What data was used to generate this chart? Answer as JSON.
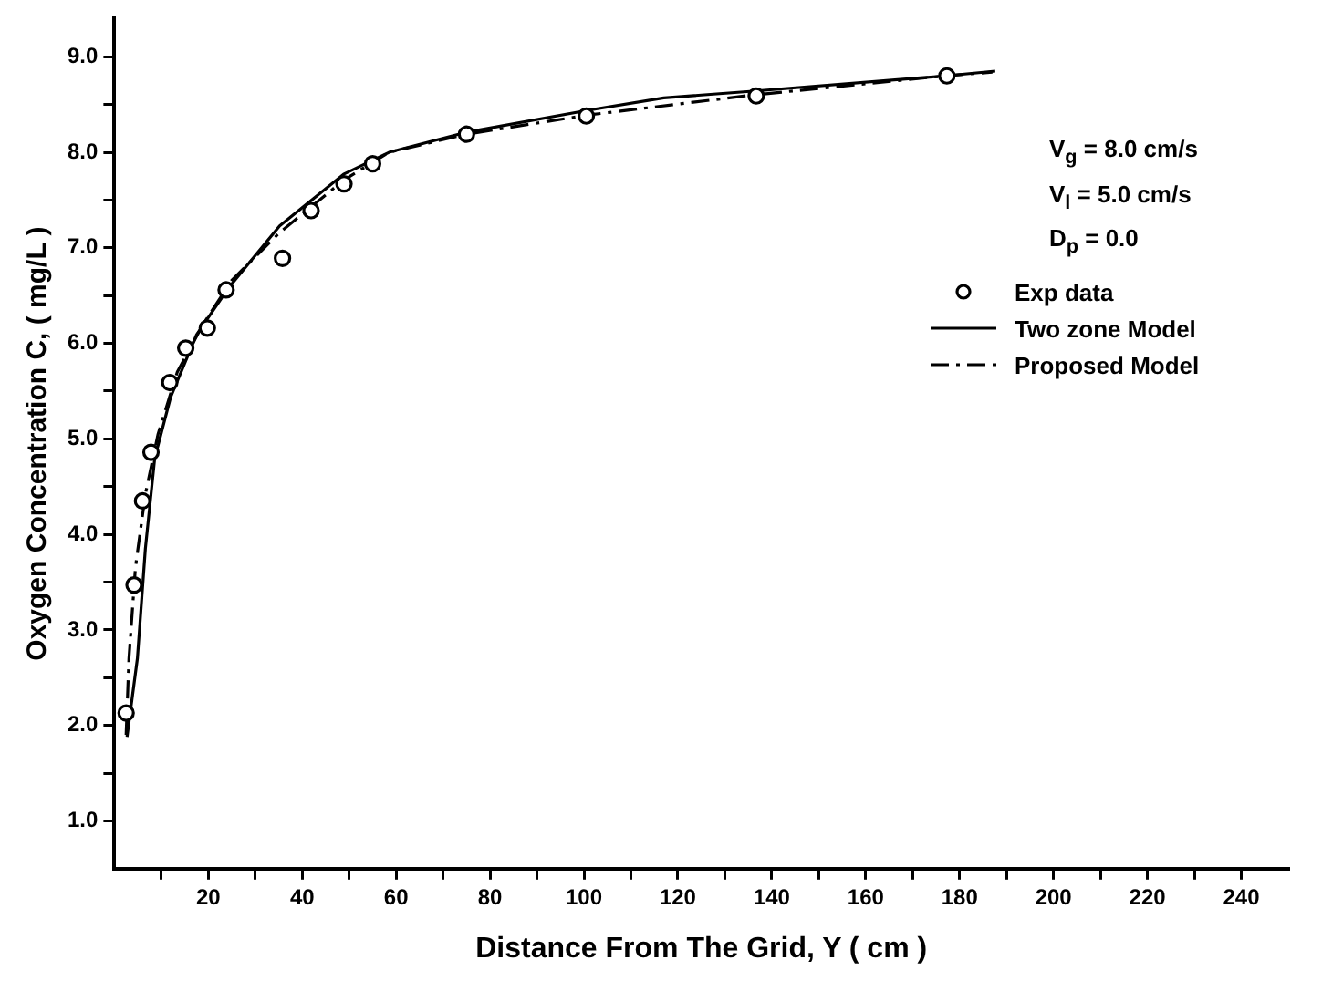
{
  "chart_data": {
    "type": "line",
    "xlabel": "Distance From The Grid, Y ( cm )",
    "ylabel": "Oxygen Concentration C, ( mg/L )",
    "xlim": [
      0,
      250
    ],
    "xticks": [
      {
        "value": 10,
        "label": null
      },
      20,
      {
        "value": 30,
        "label": null
      },
      40,
      {
        "value": 50,
        "label": null
      },
      60,
      {
        "value": 70,
        "label": null
      },
      80,
      {
        "value": 90,
        "label": null
      },
      100,
      {
        "value": 110,
        "label": null
      },
      120,
      {
        "value": 130,
        "label": null
      },
      140,
      {
        "value": 150,
        "label": null
      },
      160,
      {
        "value": 170,
        "label": null
      },
      180,
      {
        "value": 190,
        "label": null
      },
      200,
      {
        "value": 210,
        "label": null
      },
      220,
      {
        "value": 230,
        "label": null
      },
      240
    ],
    "ylim": [
      0.5,
      9.4
    ],
    "yticks": [
      {
        "value": 1,
        "label": "1.0"
      },
      {
        "value": 1.5,
        "label": null
      },
      {
        "value": 2,
        "label": "2.0"
      },
      {
        "value": 2.5,
        "label": null
      },
      {
        "value": 3,
        "label": "3.0"
      },
      {
        "value": 3.5,
        "label": null
      },
      {
        "value": 4,
        "label": "4.0"
      },
      {
        "value": 4.5,
        "label": null
      },
      {
        "value": 5,
        "label": "5.0"
      },
      {
        "value": 5.5,
        "label": null
      },
      {
        "value": 6,
        "label": "6.0"
      },
      {
        "value": 6.5,
        "label": null
      },
      {
        "value": 7,
        "label": "7.0"
      },
      {
        "value": 7.5,
        "label": null
      },
      {
        "value": 8,
        "label": "8.0"
      },
      {
        "value": 8.5,
        "label": null
      },
      {
        "value": 9,
        "label": "9.0"
      }
    ],
    "grid": false,
    "legend": "right",
    "annotations": [
      "V$_{g}$ = 8.0 cm/s",
      "V$_{l}$ = 5.0 cm/s",
      "D$_{p}$ = 0.0"
    ],
    "series": [
      {
        "name": "Exp data",
        "type": "scatter",
        "marker": "circle",
        "color": "#000000",
        "x": [
          2.5,
          4.2,
          6.0,
          7.8,
          11.8,
          15.2,
          19.8,
          23.8,
          35.8,
          41.9,
          48.9,
          55.0,
          75,
          100.5,
          136.7,
          177.3
        ],
        "values": [
          2.13,
          3.47,
          4.35,
          4.86,
          5.59,
          5.95,
          6.16,
          6.56,
          6.89,
          7.39,
          7.67,
          7.88,
          8.19,
          8.38,
          8.59,
          8.8
        ]
      },
      {
        "name": "Two zone Model",
        "marker": "none",
        "line_style": "solid",
        "color": "#000000",
        "x": [
          2.7,
          4.9,
          6.6,
          8.6,
          12,
          17.5,
          24.3,
          35.2,
          48.8,
          58.5,
          74.9,
          100.8,
          117,
          136,
          177,
          187.6
        ],
        "values": [
          1.88,
          2.7,
          3.85,
          4.8,
          5.44,
          6.09,
          6.58,
          7.23,
          7.77,
          8.0,
          8.21,
          8.44,
          8.57,
          8.64,
          8.8,
          8.85
        ]
      },
      {
        "name": "Proposed Model",
        "marker": "none",
        "line_style": "dashdot",
        "color": "#000000",
        "x": [
          2.5,
          3.1,
          4.5,
          6.6,
          9.3,
          13.4,
          18.9,
          25,
          35.2,
          48.9,
          58.5,
          75,
          100.8,
          136,
          177,
          187
        ],
        "values": [
          1.9,
          2.7,
          3.66,
          4.42,
          5.05,
          5.7,
          6.2,
          6.66,
          7.16,
          7.71,
          8.0,
          8.19,
          8.39,
          8.6,
          8.8,
          8.84
        ]
      }
    ]
  }
}
